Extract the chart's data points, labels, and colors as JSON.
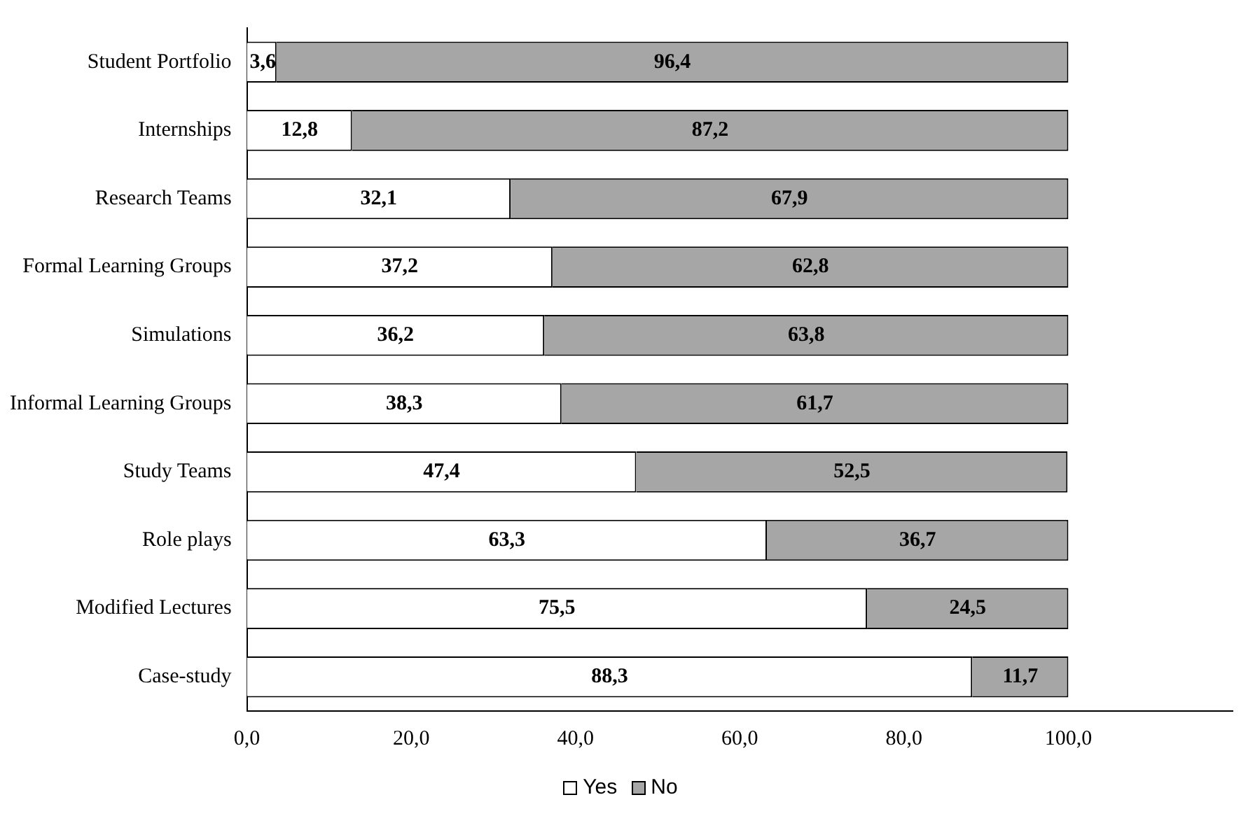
{
  "chart_data": {
    "type": "bar",
    "orientation": "horizontal",
    "stacked": true,
    "categories": [
      "Student Portfolio",
      "Internships",
      "Research Teams",
      "Formal Learning Groups",
      "Simulations",
      "Informal Learning Groups",
      "Study Teams",
      "Role plays",
      "Modified Lectures",
      "Case-study"
    ],
    "series": [
      {
        "name": "Yes",
        "color": "#ffffff",
        "values": [
          3.6,
          12.8,
          32.1,
          37.2,
          36.2,
          38.3,
          47.4,
          63.3,
          75.5,
          88.3
        ],
        "value_labels": [
          "3,6",
          "12,8",
          "32,1",
          "37,2",
          "36,2",
          "38,3",
          "47,4",
          "63,3",
          "75,5",
          "88,3"
        ]
      },
      {
        "name": "No",
        "color": "#a6a6a6",
        "values": [
          96.4,
          87.2,
          67.9,
          62.8,
          63.8,
          61.7,
          52.5,
          36.7,
          24.5,
          11.7
        ],
        "value_labels": [
          "96,4",
          "87,2",
          "67,9",
          "62,8",
          "63,8",
          "61,7",
          "52,5",
          "36,7",
          "24,5",
          "11,7"
        ]
      }
    ],
    "xlim": [
      0,
      120
    ],
    "xticks": [
      {
        "value": 0,
        "label": "0,0"
      },
      {
        "value": 20,
        "label": "20,0"
      },
      {
        "value": 40,
        "label": "40,0"
      },
      {
        "value": 60,
        "label": "60,0"
      },
      {
        "value": 80,
        "label": "80,0"
      },
      {
        "value": 100,
        "label": "100,0"
      }
    ],
    "grid": false,
    "legend": "bottom"
  }
}
